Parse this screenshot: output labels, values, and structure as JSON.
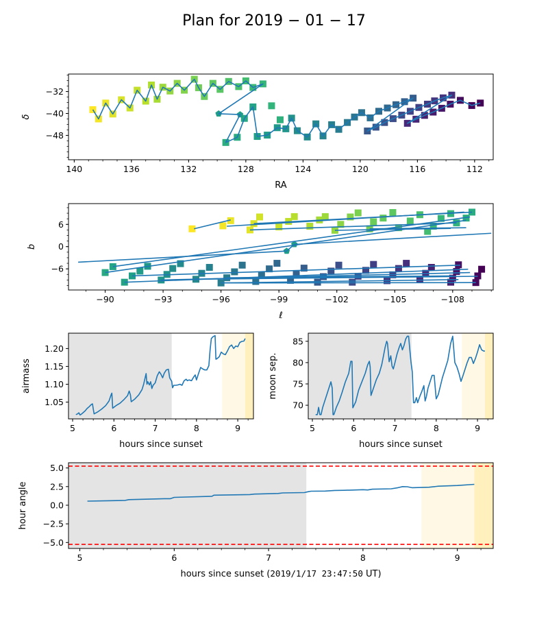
{
  "figure_title": "Plan for 2019 − 01 − 17",
  "chart_data": [
    {
      "id": "sky-radec",
      "type": "scatter",
      "xlabel": "RA",
      "ylabel": "δ",
      "xlim": [
        140.4,
        110.7
      ],
      "ylim": [
        -56.9,
        -25.6
      ],
      "xticks": [
        140,
        136,
        132,
        128,
        124,
        120,
        116,
        112
      ],
      "xtick_labels": [
        "140",
        "136",
        "132",
        "128",
        "124",
        "120",
        "116",
        "112"
      ],
      "yticks": [
        -32,
        -40,
        -48
      ],
      "ytick_labels": [
        "−32",
        "−40",
        "−48"
      ],
      "colormap": "viridis (color = observation order, yellow = first)",
      "line_color": "#1f77b4",
      "points": [
        [
          138.7,
          -38.6
        ],
        [
          138.3,
          -42.0
        ],
        [
          137.8,
          -36.2
        ],
        [
          137.3,
          -40.2
        ],
        [
          136.7,
          -35.0
        ],
        [
          136.1,
          -38.0
        ],
        [
          135.6,
          -31.5
        ],
        [
          135.0,
          -35.5
        ],
        [
          134.6,
          -29.6
        ],
        [
          134.2,
          -34.8
        ],
        [
          133.8,
          -30.4
        ],
        [
          133.3,
          -31.8
        ],
        [
          132.8,
          -29.0
        ],
        [
          132.3,
          -31.5
        ],
        [
          131.6,
          -27.5
        ],
        [
          131.3,
          -30.6
        ],
        [
          130.9,
          -33.8
        ],
        [
          130.3,
          -29.0
        ],
        [
          129.8,
          -31.2
        ],
        [
          129.2,
          -28.3
        ],
        [
          128.5,
          -30.2
        ],
        [
          128.0,
          -28.1
        ],
        [
          127.5,
          -30.5
        ],
        [
          126.8,
          -29.2
        ],
        [
          126.2,
          -37.2
        ],
        [
          125.6,
          -42.3
        ],
        [
          129.4,
          -50.6
        ],
        [
          128.6,
          -48.7
        ],
        [
          128.1,
          -41.8
        ],
        [
          127.5,
          -37.6
        ],
        [
          127.2,
          -48.4
        ],
        [
          126.5,
          -47.9
        ],
        [
          125.8,
          -45.2
        ],
        [
          125.2,
          -45.6
        ],
        [
          124.8,
          -41.7
        ],
        [
          124.4,
          -46.3
        ],
        [
          123.7,
          -48.6
        ],
        [
          123.1,
          -43.8
        ],
        [
          122.6,
          -48.2
        ],
        [
          122.0,
          -44.1
        ],
        [
          121.5,
          -45.8
        ],
        [
          120.9,
          -43.3
        ],
        [
          120.4,
          -41.3
        ],
        [
          119.9,
          -39.7
        ],
        [
          119.3,
          -41.6
        ],
        [
          118.7,
          -39.2
        ],
        [
          118.1,
          -38.0
        ],
        [
          117.5,
          -36.8
        ],
        [
          116.9,
          -35.7
        ],
        [
          116.3,
          -34.4
        ],
        [
          119.5,
          -46.4
        ],
        [
          118.9,
          -45.0
        ],
        [
          118.3,
          -43.3
        ],
        [
          117.7,
          -41.9
        ],
        [
          117.1,
          -40.6
        ],
        [
          116.5,
          -39.2
        ],
        [
          115.9,
          -37.8
        ],
        [
          115.3,
          -36.6
        ],
        [
          114.8,
          -35.4
        ],
        [
          114.2,
          -34.3
        ],
        [
          113.6,
          -33.3
        ],
        [
          116.7,
          -43.6
        ],
        [
          116.1,
          -42.1
        ],
        [
          115.5,
          -40.7
        ],
        [
          114.9,
          -39.5
        ],
        [
          114.3,
          -38.1
        ],
        [
          113.7,
          -36.6
        ],
        [
          113.0,
          -35.2
        ],
        [
          112.2,
          -37.1
        ],
        [
          111.6,
          -36.2
        ]
      ],
      "pentagon_points": [
        [
          129.9,
          -40.1
        ],
        [
          128.4,
          -40.4
        ]
      ]
    },
    {
      "id": "sky-galactic",
      "type": "scatter",
      "xlabel": "ℓ",
      "ylabel": "b",
      "xlim": [
        -88.1,
        -110.1
      ],
      "ylim": [
        -11.7,
        11.6
      ],
      "xticks": [
        -90,
        -93,
        -96,
        -99,
        -102,
        -105,
        -108
      ],
      "xtick_labels": [
        "−90",
        "−93",
        "−96",
        "−99",
        "−102",
        "−105",
        "−108"
      ],
      "yticks": [
        6,
        0,
        -6
      ],
      "ytick_labels": [
        "6",
        "0",
        "−6"
      ],
      "colormap": "viridis (color = observation order, yellow = first)",
      "line_color": "#1f77b4",
      "rows": [
        {
          "b_start": 4.8,
          "l_start": -94.6,
          "l_end": -96.5,
          "b_end": 7.2
        },
        {
          "b_start": 5.5,
          "l_start": -96.3,
          "l_end": -108.6,
          "b_end": 9.3
        },
        {
          "b_start": -5.4,
          "l_start": -90.4,
          "l_end": -108.9,
          "b_end": 8.0
        },
        {
          "b_start": -7.0,
          "l_start": -90.0,
          "l_end": -108.7,
          "b_end": 7.1
        },
        {
          "b_start": -9.6,
          "l_start": -91.0,
          "l_end": -108.8,
          "b_end": -6.1
        },
        {
          "b_start": -9.8,
          "l_start": -96.0,
          "l_end": -108.3,
          "b_end": -8.9
        }
      ],
      "squares": [
        [
          -94.5,
          4.8
        ],
        [
          -96.1,
          5.6
        ],
        [
          -96.5,
          7.0
        ],
        [
          -97.5,
          4.5
        ],
        [
          -97.7,
          6.2
        ],
        [
          -98.0,
          8.0
        ],
        [
          -99.0,
          5.3
        ],
        [
          -99.5,
          6.8
        ],
        [
          -99.8,
          8.1
        ],
        [
          -100.6,
          5.5
        ],
        [
          -101.1,
          7.2
        ],
        [
          -101.4,
          8.1
        ],
        [
          -101.9,
          4.4
        ],
        [
          -102.2,
          6.0
        ],
        [
          -102.7,
          8.0
        ],
        [
          -103.1,
          9.1
        ],
        [
          -103.7,
          4.8
        ],
        [
          -103.9,
          6.7
        ],
        [
          -104.4,
          7.7
        ],
        [
          -104.9,
          9.2
        ],
        [
          -105.2,
          5.1
        ],
        [
          -105.8,
          6.9
        ],
        [
          -106.3,
          8.6
        ],
        [
          -106.7,
          4.1
        ],
        [
          -107.0,
          5.5
        ],
        [
          -107.4,
          7.6
        ],
        [
          -107.9,
          8.9
        ],
        [
          -108.2,
          6.4
        ],
        [
          -108.7,
          7.7
        ],
        [
          -109.0,
          9.3
        ],
        [
          -90.0,
          -7.0
        ],
        [
          -90.4,
          -5.4
        ],
        [
          -91.0,
          -9.6
        ],
        [
          -91.4,
          -7.9
        ],
        [
          -91.8,
          -6.6
        ],
        [
          -92.2,
          -5.3
        ],
        [
          -92.9,
          -9.0
        ],
        [
          -93.2,
          -7.5
        ],
        [
          -93.5,
          -5.9
        ],
        [
          -93.9,
          -4.6
        ],
        [
          -94.7,
          -8.8
        ],
        [
          -95.0,
          -7.2
        ],
        [
          -95.4,
          -5.6
        ],
        [
          -96.0,
          -9.8
        ],
        [
          -96.3,
          -8.4
        ],
        [
          -96.7,
          -6.8
        ],
        [
          -97.1,
          -5.0
        ],
        [
          -97.8,
          -9.4
        ],
        [
          -98.1,
          -7.7
        ],
        [
          -98.5,
          -6.0
        ],
        [
          -98.9,
          -4.5
        ],
        [
          -99.6,
          -9.1
        ],
        [
          -99.9,
          -7.4
        ],
        [
          -100.3,
          -5.8
        ],
        [
          -101.0,
          -9.6
        ],
        [
          -101.3,
          -8.1
        ],
        [
          -101.7,
          -6.6
        ],
        [
          -102.1,
          -5.0
        ],
        [
          -102.8,
          -9.6
        ],
        [
          -103.1,
          -8.0
        ],
        [
          -103.5,
          -6.4
        ],
        [
          -103.9,
          -4.8
        ],
        [
          -104.6,
          -9.2
        ],
        [
          -104.9,
          -7.6
        ],
        [
          -105.2,
          -5.9
        ],
        [
          -105.6,
          -4.5
        ],
        [
          -106.3,
          -8.9
        ],
        [
          -106.6,
          -7.2
        ],
        [
          -106.9,
          -5.6
        ],
        [
          -107.9,
          -9.6
        ],
        [
          -108.0,
          -8.5
        ],
        [
          -108.2,
          -6.7
        ],
        [
          -108.3,
          -4.9
        ],
        [
          -109.2,
          -9.7
        ],
        [
          -109.3,
          -7.9
        ],
        [
          -109.5,
          -6.1
        ]
      ],
      "pentagon_points": [
        [
          -99.4,
          -1.2
        ],
        [
          -99.8,
          0.6
        ]
      ]
    },
    {
      "id": "airmass",
      "type": "line",
      "xlabel": "hours since sunset",
      "ylabel": "airmass",
      "xlim": [
        4.9,
        9.38
      ],
      "ylim": [
        1.003,
        1.243
      ],
      "xticks": [
        5,
        6,
        7,
        8,
        9
      ],
      "xtick_labels": [
        "5",
        "6",
        "7",
        "8",
        "9"
      ],
      "yticks": [
        1.05,
        1.1,
        1.15,
        1.2
      ],
      "ytick_labels": [
        "1.05",
        "1.10",
        "1.15",
        "1.20"
      ],
      "line_color": "#1f77b4",
      "bands": [
        {
          "from": 4.9,
          "to": 7.4,
          "color": "#e4e4e4",
          "label": "night"
        },
        {
          "from": 8.62,
          "to": 9.18,
          "color": "#fff8e4",
          "label": "twilight"
        },
        {
          "from": 9.18,
          "to": 9.38,
          "color": "#fff0bd",
          "label": "dawn"
        }
      ],
      "x": [
        5.08,
        5.12,
        5.15,
        5.18,
        5.21,
        5.25,
        5.3,
        5.35,
        5.4,
        5.45,
        5.48,
        5.5,
        5.52,
        5.6,
        5.7,
        5.8,
        5.88,
        5.93,
        5.95,
        5.97,
        6.05,
        6.15,
        6.25,
        6.33,
        6.37,
        6.4,
        6.42,
        6.5,
        6.6,
        6.68,
        6.72,
        6.76,
        6.78,
        6.8,
        6.82,
        6.86,
        6.89,
        6.92,
        6.95,
        7.0,
        7.05,
        7.1,
        7.14,
        7.18,
        7.22,
        7.27,
        7.32,
        7.35,
        7.4,
        7.42,
        7.45,
        7.5,
        7.55,
        7.6,
        7.65,
        7.7,
        7.75,
        7.78,
        7.82,
        7.88,
        7.93,
        7.97,
        8.0,
        8.05,
        8.1,
        8.15,
        8.2,
        8.25,
        8.3,
        8.33,
        8.36,
        8.4,
        8.45,
        8.47,
        8.5,
        8.55,
        8.6,
        8.65,
        8.7,
        8.75,
        8.8,
        8.85,
        8.9,
        8.95,
        9.0,
        9.05,
        9.1,
        9.15,
        9.18
      ],
      "y": [
        1.015,
        1.017,
        1.02,
        1.014,
        1.016,
        1.02,
        1.025,
        1.032,
        1.037,
        1.043,
        1.045,
        1.03,
        1.017,
        1.022,
        1.03,
        1.04,
        1.053,
        1.07,
        1.075,
        1.033,
        1.04,
        1.047,
        1.058,
        1.068,
        1.081,
        1.07,
        1.051,
        1.058,
        1.07,
        1.085,
        1.1,
        1.12,
        1.13,
        1.1,
        1.107,
        1.098,
        1.107,
        1.088,
        1.097,
        1.104,
        1.124,
        1.135,
        1.128,
        1.118,
        1.131,
        1.14,
        1.142,
        1.118,
        1.108,
        1.09,
        1.097,
        1.097,
        1.098,
        1.1,
        1.097,
        1.11,
        1.114,
        1.11,
        1.112,
        1.11,
        1.12,
        1.126,
        1.112,
        1.13,
        1.147,
        1.143,
        1.14,
        1.14,
        1.152,
        1.196,
        1.228,
        1.233,
        1.236,
        1.17,
        1.172,
        1.177,
        1.19,
        1.185,
        1.183,
        1.193,
        1.205,
        1.21,
        1.2,
        1.207,
        1.205,
        1.217,
        1.22,
        1.221,
        1.228
      ]
    },
    {
      "id": "moon-separation",
      "type": "line",
      "xlabel": "hours since sunset",
      "ylabel": "moon sep.",
      "xlim": [
        4.9,
        9.38
      ],
      "ylim": [
        66.8,
        86.9
      ],
      "xticks": [
        5,
        6,
        7,
        8,
        9
      ],
      "xtick_labels": [
        "5",
        "6",
        "7",
        "8",
        "9"
      ],
      "yticks": [
        70,
        75,
        80,
        85
      ],
      "ytick_labels": [
        "70",
        "75",
        "80",
        "85"
      ],
      "line_color": "#1f77b4",
      "bands": [
        {
          "from": 4.9,
          "to": 7.4,
          "color": "#e4e4e4",
          "label": "night"
        },
        {
          "from": 8.62,
          "to": 9.18,
          "color": "#fff8e4",
          "label": "twilight"
        },
        {
          "from": 9.18,
          "to": 9.38,
          "color": "#fff0bd",
          "label": "dawn"
        }
      ],
      "x": [
        5.08,
        5.12,
        5.15,
        5.18,
        5.21,
        5.25,
        5.3,
        5.35,
        5.4,
        5.45,
        5.48,
        5.5,
        5.52,
        5.58,
        5.65,
        5.72,
        5.8,
        5.88,
        5.93,
        5.96,
        5.98,
        6.05,
        6.12,
        6.2,
        6.28,
        6.34,
        6.38,
        6.4,
        6.42,
        6.48,
        6.55,
        6.62,
        6.68,
        6.72,
        6.76,
        6.8,
        6.82,
        6.86,
        6.9,
        6.93,
        6.96,
        7.0,
        7.05,
        7.1,
        7.14,
        7.18,
        7.22,
        7.26,
        7.3,
        7.33,
        7.36,
        7.39,
        7.42,
        7.45,
        7.48,
        7.52,
        7.55,
        7.6,
        7.65,
        7.7,
        7.73,
        7.76,
        7.8,
        7.85,
        7.9,
        7.95,
        8.0,
        8.05,
        8.1,
        8.15,
        8.2,
        8.28,
        8.35,
        8.4,
        8.45,
        8.5,
        8.55,
        8.6,
        8.65,
        8.7,
        8.75,
        8.8,
        8.85,
        8.9,
        8.95,
        9.0,
        9.05,
        9.1,
        9.15,
        9.18
      ],
      "y": [
        67.8,
        67.8,
        69.5,
        67.8,
        67.8,
        69.5,
        71.0,
        72.5,
        74.0,
        75.5,
        74.0,
        67.8,
        67.8,
        69.5,
        71.0,
        73.0,
        75.5,
        77.5,
        80.3,
        80.3,
        69.4,
        70.8,
        73.5,
        75.5,
        77.5,
        79.5,
        80.3,
        79.0,
        72.3,
        74.0,
        76.0,
        77.5,
        79.5,
        81.5,
        83.5,
        85.0,
        84.5,
        80.2,
        81.6,
        79.2,
        78.5,
        80.0,
        82.0,
        83.5,
        84.5,
        83.0,
        84.0,
        85.5,
        86.2,
        86.2,
        83.0,
        80.0,
        77.8,
        70.6,
        70.6,
        71.8,
        70.6,
        72.0,
        73.2,
        74.6,
        71.0,
        72.0,
        74.0,
        75.5,
        77.0,
        77.0,
        71.5,
        72.5,
        74.5,
        76.5,
        78.0,
        80.5,
        84.5,
        86.2,
        80.0,
        79.0,
        77.5,
        75.6,
        77.0,
        78.5,
        80.0,
        81.2,
        81.2,
        79.8,
        81.0,
        82.5,
        84.2,
        83.0,
        82.7,
        82.7
      ]
    },
    {
      "id": "hour-angle",
      "type": "line",
      "xlabel": "hours since sunset (2019/1/17 23:47:50 UT)",
      "xlabel_parts": {
        "text": "hours since sunset (",
        "mono": "2019/1/17 23:47:50",
        "suffix": " UT)"
      },
      "ylabel": "hour angle",
      "xlim": [
        4.88,
        9.38
      ],
      "ylim": [
        -5.8,
        5.7
      ],
      "xticks": [
        5,
        6,
        7,
        8,
        9
      ],
      "xtick_labels": [
        "5",
        "6",
        "7",
        "8",
        "9"
      ],
      "yticks": [
        5.0,
        2.5,
        0.0,
        -2.5,
        -5.0
      ],
      "ytick_labels": [
        "5.0",
        "2.5",
        "0.0",
        "−2.5",
        "−5.0"
      ],
      "line_color": "#1f77b4",
      "limits": {
        "values": [
          5.25,
          -5.25
        ],
        "color": "#ff0000",
        "style": "dashed"
      },
      "bands": [
        {
          "from": 4.88,
          "to": 7.4,
          "color": "#e4e4e4",
          "label": "night"
        },
        {
          "from": 8.62,
          "to": 9.18,
          "color": "#fff8e4",
          "label": "twilight"
        },
        {
          "from": 9.18,
          "to": 9.38,
          "color": "#fff0bd",
          "label": "dawn"
        }
      ],
      "x": [
        5.08,
        5.3,
        5.48,
        5.52,
        5.9,
        5.96,
        6.0,
        6.4,
        6.42,
        6.8,
        6.85,
        7.1,
        7.15,
        7.38,
        7.42,
        7.45,
        7.6,
        7.7,
        7.8,
        8.0,
        8.05,
        8.1,
        8.3,
        8.37,
        8.42,
        8.47,
        8.52,
        8.7,
        8.8,
        9.0,
        9.18
      ],
      "y": [
        0.55,
        0.6,
        0.65,
        0.75,
        0.88,
        0.88,
        1.05,
        1.2,
        1.35,
        1.43,
        1.5,
        1.58,
        1.65,
        1.7,
        1.82,
        1.88,
        1.9,
        1.98,
        2.0,
        2.08,
        2.05,
        2.15,
        2.2,
        2.35,
        2.5,
        2.48,
        2.35,
        2.42,
        2.55,
        2.65,
        2.8
      ]
    }
  ]
}
